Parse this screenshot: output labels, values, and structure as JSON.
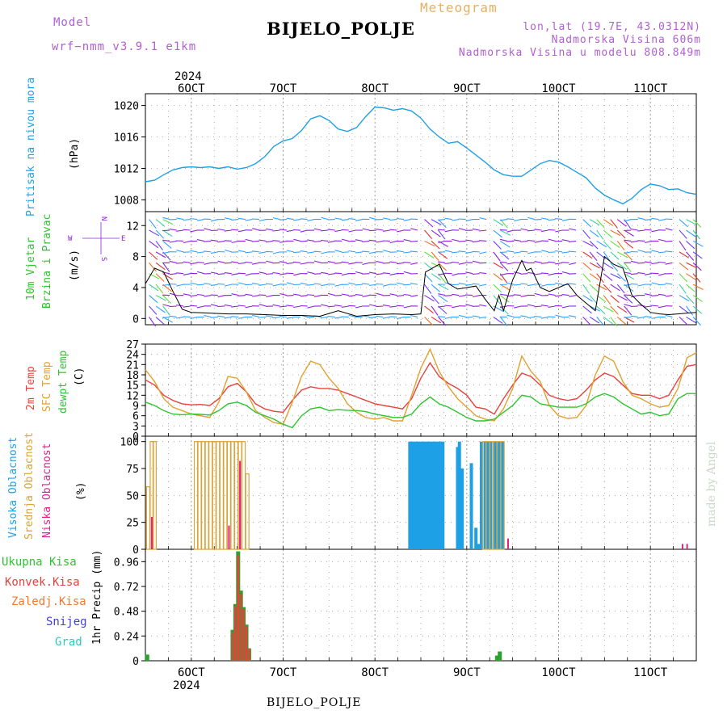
{
  "header": {
    "model_label": "Model",
    "model_name": "wrf−nmm_v3.9.1  e1km",
    "title": "BIJELO_POLJE",
    "meteogram_label": "Meteogram",
    "coords": "lon,lat (19.7E, 43.0312N)",
    "altitude": "Nadmorska Visina 606m",
    "model_altitude": "Nadmorska Visina u modelu 808.849m",
    "credit": "made by Angel",
    "footer": "BIJELO_POLJE"
  },
  "colors": {
    "pressure": "#1ea0e6",
    "temp2m": "#e8413c",
    "sfc": "#e2a02e",
    "dewpt": "#2ec42e",
    "high_cloud": "#1ea0e6",
    "mid_cloud": "#d9a43a",
    "low_cloud": "#e0208c",
    "total_precip": "#2ea02e",
    "conv_precip": "#e8413c",
    "frozen": "#f07830",
    "snow": "#4040e0",
    "hail": "#30c8b8",
    "wind_purple": "#9020e0"
  },
  "time_axis": {
    "year": "2024",
    "day_labels": [
      "6OCT",
      "7OCT",
      "8OCT",
      "9OCT",
      "10OCT",
      "11OCT"
    ],
    "day_positions": [
      6,
      7,
      8,
      9,
      10,
      11
    ],
    "x_range": [
      5.5,
      11.5
    ]
  },
  "panels": {
    "pressure": {
      "label_main": "Pritisak na nivou mora",
      "unit": "(hPa)",
      "ticks": [
        "1008",
        "1012",
        "1016",
        "1020"
      ]
    },
    "wind": {
      "label_main": "10m Vjetar",
      "label_sub": "Brzina i Pravac",
      "unit": "(m/s)",
      "ticks": [
        "0",
        "4",
        "8",
        "12"
      ],
      "compass_n": "N",
      "compass_w": "W",
      "compass_e": "E",
      "compass_s": "S"
    },
    "temp": {
      "label_2m": "2m Temp",
      "label_sfc": "SFC Temp",
      "label_dew": "dewpt Temp",
      "unit": "(C)",
      "ticks": [
        "0",
        "3",
        "6",
        "9",
        "12",
        "15",
        "18",
        "21",
        "24",
        "27"
      ]
    },
    "cloud": {
      "label_high": "Visoka Oblacnost",
      "label_mid": "Srednja Oblacnost",
      "label_low": "Niska Oblacnost",
      "unit": "(%)",
      "ticks": [
        "0",
        "25",
        "50",
        "75",
        "100"
      ]
    },
    "precip": {
      "label_total": "Ukupna Kisa",
      "label_conv": "Konvek.Kisa",
      "label_frozen": "Zaledj.Kisa",
      "label_snow": "Snijeg",
      "label_hail": "Grad",
      "unit": "1hr Precip (mm)",
      "ticks": [
        "0",
        "0.24",
        "0.48",
        "0.72",
        "0.96"
      ]
    }
  },
  "chart_data": [
    {
      "type": "line",
      "name": "pressure",
      "ylim": [
        1006.5,
        1021.5
      ],
      "x": [
        5.5,
        5.6,
        5.7,
        5.8,
        5.9,
        6.0,
        6.1,
        6.2,
        6.3,
        6.4,
        6.5,
        6.6,
        6.7,
        6.8,
        6.9,
        7.0,
        7.1,
        7.2,
        7.3,
        7.4,
        7.5,
        7.6,
        7.7,
        7.8,
        7.9,
        8.0,
        8.1,
        8.2,
        8.3,
        8.4,
        8.5,
        8.6,
        8.7,
        8.8,
        8.9,
        9.0,
        9.1,
        9.2,
        9.3,
        9.4,
        9.5,
        9.6,
        9.7,
        9.8,
        9.9,
        10.0,
        10.1,
        10.2,
        10.3,
        10.4,
        10.5,
        10.6,
        10.7,
        10.8,
        10.9,
        11.0,
        11.1,
        11.2,
        11.3,
        11.4,
        11.5
      ],
      "values": [
        1010.3,
        1010.5,
        1011.2,
        1011.8,
        1012.1,
        1012.2,
        1012.1,
        1012.2,
        1012.0,
        1012.2,
        1011.9,
        1012.1,
        1012.6,
        1013.5,
        1014.8,
        1015.5,
        1015.8,
        1016.8,
        1018.3,
        1018.7,
        1018.1,
        1017.0,
        1016.7,
        1017.2,
        1018.6,
        1019.8,
        1019.7,
        1019.4,
        1019.6,
        1019.3,
        1018.4,
        1017.0,
        1016.0,
        1015.2,
        1015.4,
        1014.6,
        1013.7,
        1012.8,
        1011.8,
        1011.2,
        1011.0,
        1011.0,
        1011.8,
        1012.6,
        1013.0,
        1012.8,
        1012.2,
        1011.5,
        1010.8,
        1009.5,
        1008.6,
        1008.0,
        1007.5,
        1008.2,
        1009.3,
        1010.0,
        1009.8,
        1009.3,
        1009.4,
        1008.9,
        1008.7
      ]
    },
    {
      "type": "line",
      "name": "wind",
      "ylim": [
        -0.8,
        13.8
      ],
      "x": [
        5.5,
        5.6,
        5.7,
        5.8,
        5.9,
        6.0,
        6.2,
        6.4,
        6.6,
        6.8,
        7.0,
        7.2,
        7.4,
        7.6,
        7.8,
        8.0,
        8.2,
        8.4,
        8.5,
        8.55,
        8.7,
        8.8,
        8.9,
        9.0,
        9.1,
        9.2,
        9.3,
        9.35,
        9.4,
        9.5,
        9.6,
        9.65,
        9.7,
        9.8,
        9.9,
        10.0,
        10.1,
        10.2,
        10.3,
        10.4,
        10.5,
        10.6,
        10.7,
        10.8,
        10.9,
        11.0,
        11.1,
        11.2,
        11.3,
        11.4,
        11.5
      ],
      "values": [
        4.5,
        6.5,
        6.0,
        3.5,
        1.2,
        0.8,
        0.7,
        0.6,
        0.6,
        0.5,
        0.4,
        0.4,
        0.3,
        1.0,
        0.3,
        0.5,
        0.6,
        0.5,
        0.6,
        6.0,
        7.0,
        4.5,
        3.8,
        4.0,
        4.2,
        2.5,
        1.0,
        3.0,
        1.0,
        5.0,
        7.5,
        6.2,
        6.5,
        4.0,
        3.5,
        4.0,
        4.5,
        3.0,
        2.0,
        1.0,
        8.0,
        7.0,
        6.5,
        3.0,
        1.8,
        0.8,
        0.6,
        0.5,
        0.6,
        0.7,
        0.8
      ]
    },
    {
      "type": "line",
      "name": "temperature",
      "ylim": [
        0,
        27
      ],
      "x": [
        5.5,
        5.6,
        5.7,
        5.8,
        5.9,
        6.0,
        6.1,
        6.2,
        6.3,
        6.4,
        6.5,
        6.6,
        6.7,
        6.8,
        6.9,
        7.0,
        7.1,
        7.2,
        7.3,
        7.4,
        7.5,
        7.6,
        7.7,
        7.8,
        7.9,
        8.0,
        8.1,
        8.2,
        8.3,
        8.4,
        8.5,
        8.6,
        8.7,
        8.8,
        8.9,
        9.0,
        9.1,
        9.2,
        9.3,
        9.4,
        9.5,
        9.6,
        9.7,
        9.8,
        9.9,
        10.0,
        10.1,
        10.2,
        10.3,
        10.4,
        10.5,
        10.6,
        10.7,
        10.8,
        10.9,
        11.0,
        11.1,
        11.2,
        11.3,
        11.4,
        11.5
      ],
      "series": [
        {
          "name": "2m Temp",
          "values": [
            16.5,
            15.0,
            12.0,
            10.5,
            9.5,
            9.2,
            9.3,
            9.0,
            11.0,
            14.5,
            15.5,
            13.0,
            9.5,
            8.0,
            7.3,
            7.0,
            10.5,
            13.5,
            14.5,
            14.0,
            14.0,
            13.5,
            12.5,
            11.5,
            10.5,
            9.5,
            9.0,
            8.5,
            8.0,
            11.0,
            17.0,
            21.5,
            17.5,
            15.5,
            14.0,
            12.0,
            8.5,
            8.0,
            6.5,
            11.0,
            15.0,
            18.5,
            17.5,
            15.0,
            12.0,
            11.0,
            10.5,
            11.0,
            13.5,
            16.5,
            18.5,
            17.5,
            15.0,
            12.5,
            12.0,
            12.0,
            11.0,
            12.0,
            16.5,
            20.5,
            21.0
          ]
        },
        {
          "name": "SFC Temp",
          "values": [
            19.5,
            16.0,
            11.0,
            8.5,
            7.5,
            6.5,
            6.0,
            5.5,
            10.0,
            17.5,
            17.0,
            13.0,
            7.5,
            5.5,
            4.0,
            3.5,
            10.0,
            17.5,
            22.0,
            21.0,
            17.0,
            14.0,
            9.5,
            7.0,
            5.5,
            5.0,
            5.5,
            4.5,
            4.5,
            12.0,
            20.0,
            25.5,
            19.0,
            14.5,
            11.0,
            8.5,
            6.0,
            5.0,
            4.5,
            8.0,
            14.0,
            23.5,
            19.0,
            16.0,
            9.0,
            6.0,
            5.2,
            5.5,
            9.0,
            18.0,
            23.5,
            22.0,
            16.0,
            12.0,
            11.0,
            9.5,
            8.5,
            9.0,
            14.0,
            23.0,
            24.5
          ]
        },
        {
          "name": "dewpt Temp",
          "values": [
            10.0,
            9.0,
            7.5,
            6.5,
            6.3,
            6.5,
            6.4,
            6.2,
            7.5,
            9.5,
            10.0,
            9.0,
            7.0,
            6.0,
            5.0,
            3.5,
            2.5,
            6.0,
            8.0,
            8.5,
            7.5,
            7.8,
            7.6,
            7.5,
            7.2,
            6.5,
            6.0,
            5.5,
            5.5,
            6.5,
            9.5,
            11.5,
            9.5,
            8.5,
            7.0,
            5.5,
            4.5,
            4.5,
            5.0,
            7.0,
            9.0,
            12.0,
            11.5,
            9.5,
            9.0,
            8.5,
            8.5,
            8.5,
            9.5,
            11.5,
            12.5,
            11.5,
            9.5,
            8.0,
            6.5,
            7.0,
            6.0,
            6.5,
            11.0,
            12.5,
            12.5
          ]
        }
      ]
    },
    {
      "type": "bar",
      "name": "cloud cover",
      "ylim": [
        0,
        105
      ],
      "series": [
        {
          "name": "Visoka Oblacnost",
          "x": [
            8.38,
            8.41,
            8.44,
            8.47,
            8.5,
            8.53,
            8.56,
            8.59,
            8.62,
            8.65,
            8.68,
            8.71,
            8.74,
            8.9,
            8.92,
            8.95,
            9.05,
            9.1,
            9.13,
            9.16,
            9.2,
            9.23,
            9.26,
            9.3,
            9.33,
            9.36,
            9.39
          ],
          "values": [
            100,
            100,
            100,
            100,
            100,
            100,
            100,
            100,
            100,
            100,
            100,
            100,
            100,
            95,
            100,
            75,
            80,
            20,
            5,
            100,
            100,
            100,
            100,
            100,
            100,
            100,
            100
          ]
        },
        {
          "name": "Srednja Oblacnost",
          "x": [
            5.53,
            5.57,
            5.6,
            6.05,
            6.09,
            6.13,
            6.17,
            6.21,
            6.25,
            6.29,
            6.33,
            6.37,
            6.41,
            6.45,
            6.49,
            6.53,
            6.57,
            6.61,
            9.19,
            9.23,
            9.27,
            9.31,
            9.35,
            9.39
          ],
          "values": [
            58,
            100,
            100,
            100,
            100,
            100,
            100,
            100,
            100,
            100,
            100,
            100,
            100,
            100,
            100,
            100,
            100,
            70,
            100,
            100,
            100,
            100,
            100,
            100
          ]
        },
        {
          "name": "Niska Oblacnost",
          "x": [
            5.57,
            6.41,
            6.53,
            9.45,
            11.35,
            11.4
          ],
          "values": [
            30,
            22,
            82,
            10,
            5,
            5
          ]
        }
      ]
    },
    {
      "type": "bar",
      "name": "precipitation",
      "ylim": [
        0,
        1.08
      ],
      "series": [
        {
          "name": "Ukupna Kisa",
          "x": [
            5.52,
            6.45,
            6.48,
            6.51,
            6.54,
            6.57,
            6.6,
            6.63,
            9.33,
            9.36
          ],
          "values": [
            0.06,
            0.3,
            0.55,
            1.06,
            0.68,
            0.52,
            0.35,
            0.12,
            0.05,
            0.09
          ]
        },
        {
          "name": "Konvek.Kisa",
          "x": [
            6.45,
            6.48,
            6.51,
            6.54,
            6.57,
            6.6,
            6.63
          ],
          "values": [
            0.28,
            0.53,
            1.02,
            0.65,
            0.5,
            0.33,
            0.12
          ]
        }
      ]
    }
  ]
}
